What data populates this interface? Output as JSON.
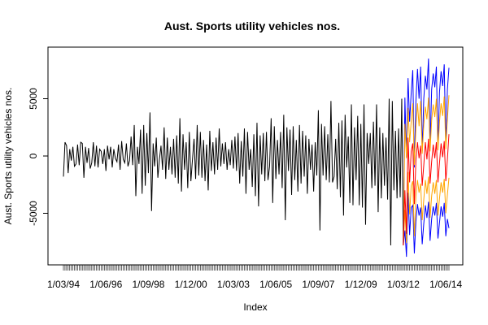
{
  "chart_data": {
    "type": "line",
    "title": "Aust. Sports utility vehicles nos.",
    "xlabel": "Index",
    "ylabel": "Aust. Sports utility vehicles nos.",
    "ylim": [
      -9000,
      9000
    ],
    "yticks": [
      5000,
      0,
      -5000
    ],
    "ytick_labels": [
      "5000",
      "0",
      "-5000"
    ],
    "x_tick_labels": [
      "1/03/94",
      "1/06/96",
      "1/09/98",
      "1/12/00",
      "1/03/03",
      "1/06/05",
      "1/09/07",
      "1/12/09",
      "1/03/12",
      "1/06/14"
    ],
    "grid": false,
    "series": [
      {
        "role": "observed",
        "color": "#000000",
        "start": "1/03/94",
        "values": [
          -1800,
          1200,
          900,
          -1500,
          600,
          -400,
          800,
          -900,
          -700,
          1000,
          -800,
          1200,
          1100,
          -1900,
          800,
          -600,
          700,
          -1100,
          -600,
          1200,
          -900,
          900,
          -1000,
          600,
          400,
          -700,
          600,
          -1300,
          900,
          -300,
          800,
          -1000,
          600,
          -200,
          -500,
          1000,
          -1200,
          1300,
          -300,
          -600,
          1100,
          -900,
          -400,
          1700,
          -800,
          2700,
          -3500,
          800,
          -700,
          2300,
          -3300,
          2700,
          -2600,
          2000,
          -1500,
          3800,
          -4800,
          1100,
          -900,
          1600,
          -1900,
          -300,
          900,
          -1200,
          2500,
          -2000,
          1600,
          -1200,
          800,
          -1600,
          1500,
          -1900,
          1800,
          -2400,
          3300,
          -3100,
          1900,
          -1200,
          1200,
          -2800,
          2100,
          -2200,
          -300,
          1500,
          -2000,
          2700,
          -1700,
          2100,
          -1900,
          1400,
          -2200,
          1000,
          -3000,
          2200,
          -1300,
          1200,
          -1600,
          1600,
          -1200,
          2400,
          -900,
          1100,
          -700,
          1200,
          -1200,
          600,
          -800,
          1400,
          -1100,
          1700,
          -1300,
          2000,
          -2400,
          1300,
          -1800,
          2400,
          -3300,
          2100,
          -1200,
          600,
          -2700,
          1900,
          -3500,
          2900,
          -4400,
          1800,
          -1600,
          2000,
          -2200,
          2100,
          -2100,
          -900,
          3300,
          -4100,
          2600,
          -2000,
          1400,
          -1600,
          2100,
          -2800,
          3600,
          -5600,
          2500,
          -1300,
          2300,
          -3400,
          2600,
          -2100,
          1400,
          -3100,
          2700,
          -2400,
          2200,
          -1800,
          1800,
          -3300,
          1500,
          -1200,
          1000,
          -3100,
          1200,
          -1700,
          4000,
          -6500,
          2800,
          -1700,
          2600,
          -2100,
          1900,
          -2300,
          4800,
          -2300,
          -1800,
          1500,
          -2900,
          2900,
          -3600,
          3100,
          -5200,
          3600,
          -1000,
          1700,
          -4100,
          4500,
          -4300,
          2500,
          -2100,
          3500,
          -4300,
          2800,
          -4500,
          4500,
          -6000,
          2000,
          -700,
          2000,
          -2800,
          3000,
          -2600,
          4500,
          -4900,
          2500,
          -3700,
          2000,
          -2600,
          1600,
          -3800,
          5000,
          -7800,
          4800,
          -3000,
          2200,
          -3700,
          2400,
          -3600,
          5000,
          -7800
        ],
        "end": "1/04/13"
      },
      {
        "role": "forecast-upper-outer",
        "color": "#0000ff",
        "values": [
          5100,
          -100,
          6800,
          3000,
          5500,
          7500,
          -1000,
          4800,
          7600,
          5000,
          7800,
          400,
          5000,
          7000,
          5800,
          8500,
          700,
          5800,
          7200,
          6000,
          7800,
          800,
          5600,
          7400,
          6100,
          8000,
          1000,
          5800,
          7700
        ]
      },
      {
        "role": "forecast-upper-inner",
        "color": "#ffa500",
        "values": [
          2800,
          -200,
          4200,
          1200,
          3000,
          4600,
          -800,
          2400,
          4600,
          2600,
          4800,
          200,
          2700,
          4300,
          3200,
          5100,
          400,
          3100,
          4500,
          3400,
          5000,
          500,
          3000,
          4600,
          3500,
          5200,
          600,
          3200,
          5300
        ]
      },
      {
        "role": "forecast-point",
        "color": "#ff0000",
        "values": [
          -3000,
          -6800,
          1600,
          -2300,
          400,
          1100,
          -4200,
          -400,
          1200,
          -200,
          900,
          -2600,
          -800,
          1200,
          -300,
          1500,
          -2400,
          -500,
          1000,
          -200,
          1200,
          -2300,
          -600,
          1100,
          -100,
          1300,
          -2200,
          -300,
          1900
        ]
      },
      {
        "role": "forecast-lower-inner",
        "color": "#ffa500",
        "values": [
          -4700,
          -7600,
          -1400,
          -5100,
          -2600,
          -2200,
          -7000,
          -3500,
          -2100,
          -3200,
          -2400,
          -5600,
          -3800,
          -2100,
          -3300,
          -1800,
          -5400,
          -3500,
          -2300,
          -3300,
          -2100,
          -5200,
          -3700,
          -2300,
          -3200,
          -2000,
          -5000,
          -3400,
          -1900
        ]
      },
      {
        "role": "forecast-lower-outer",
        "color": "#0000ff",
        "values": [
          -6500,
          -8800,
          -3200,
          -6900,
          -4500,
          -4300,
          -8500,
          -5700,
          -4200,
          -5200,
          -4500,
          -7700,
          -5900,
          -4300,
          -5400,
          -4000,
          -7400,
          -5500,
          -4400,
          -5200,
          -4100,
          -7200,
          -5800,
          -4400,
          -5300,
          -4100,
          -7000,
          -5500,
          -6300
        ]
      }
    ]
  }
}
